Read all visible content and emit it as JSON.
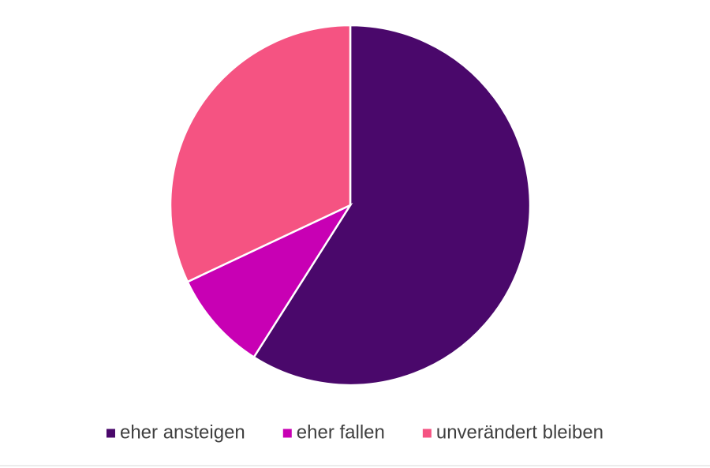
{
  "chart_data": {
    "type": "pie",
    "categories": [
      "eher ansteigen",
      "eher fallen",
      "unverändert bleiben"
    ],
    "values": [
      59,
      9,
      32
    ],
    "colors": [
      "#4a086b",
      "#c800b4",
      "#f55382"
    ],
    "legend": "bottom"
  }
}
